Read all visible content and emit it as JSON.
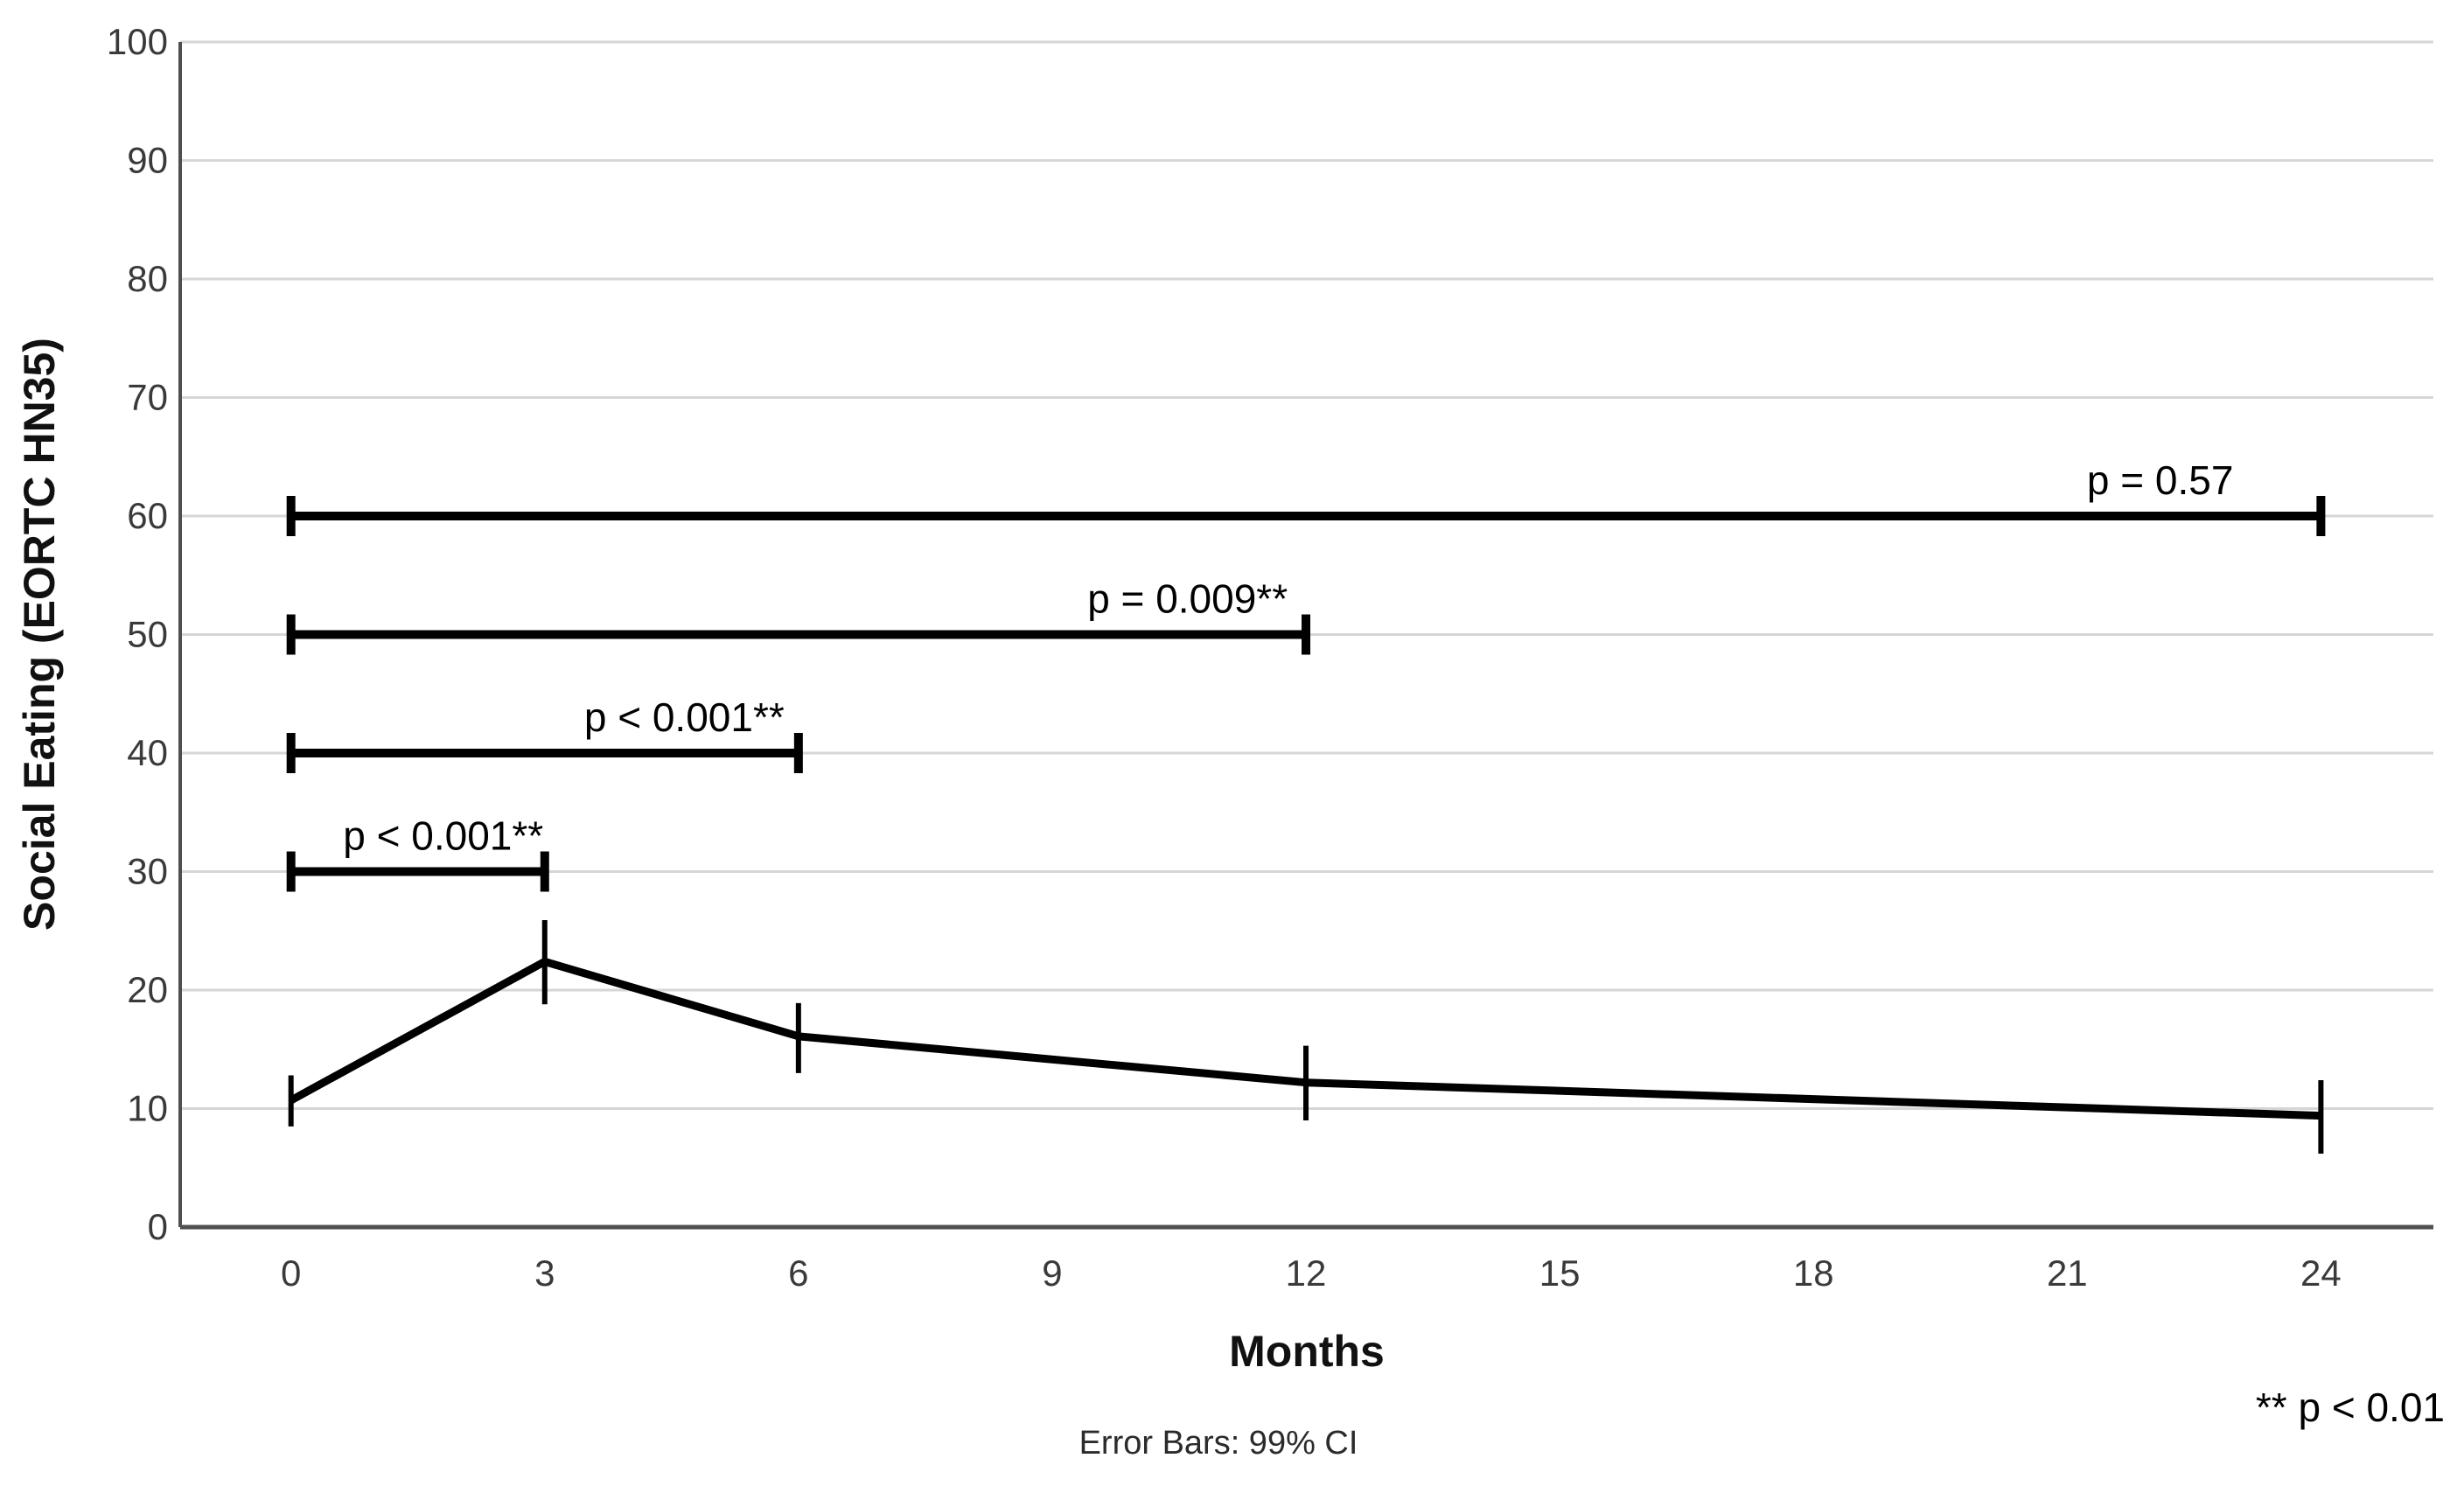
{
  "chart_data": {
    "type": "line",
    "title": "",
    "xlabel": "Months",
    "ylabel": "Social Eating (EORTC HN35)",
    "caption": "Error Bars: 99% CI",
    "footnote": "** p < 0.01",
    "x_ticks": [
      0,
      3,
      6,
      9,
      12,
      15,
      18,
      21,
      24
    ],
    "y_ticks": [
      0,
      10,
      20,
      30,
      40,
      50,
      60,
      70,
      80,
      90,
      100
    ],
    "xlim": [
      -1.31,
      25.33
    ],
    "ylim": [
      0,
      100
    ],
    "grid": "horizontal",
    "legend_position": "none",
    "series": [
      {
        "name": "Social Eating (EORTC HN35) mean",
        "x": [
          0,
          3,
          6,
          12,
          24
        ],
        "y": [
          10.7,
          22.4,
          16.1,
          12.2,
          9.4
        ],
        "ci_low": [
          8.5,
          18.8,
          13.0,
          9.0,
          6.2
        ],
        "ci_high": [
          12.8,
          25.9,
          18.9,
          15.3,
          12.4
        ],
        "error_bars": "99% CI"
      }
    ],
    "significance_brackets": [
      {
        "x_start": 0,
        "x_end": 24,
        "y": 60,
        "label": "p = 0.57",
        "label_center_x": 22.1
      },
      {
        "x_start": 0,
        "x_end": 12,
        "y": 50,
        "label": "p = 0.009**",
        "label_center_x": 10.6
      },
      {
        "x_start": 0,
        "x_end": 6,
        "y": 40,
        "label": "p < 0.001**",
        "label_center_x": 4.65
      },
      {
        "x_start": 0,
        "x_end": 3,
        "y": 30,
        "label": "p < 0.001**",
        "label_center_x": 1.8
      }
    ]
  },
  "colors": {
    "background": "#ffffff",
    "data_line": "#000000",
    "error_bar": "#000000",
    "bracket": "#000000",
    "gridline": "#d6d6d6",
    "axis_line": "#4f4f4f",
    "tick_text": "#3a3a3a",
    "label_text": "#000000"
  }
}
